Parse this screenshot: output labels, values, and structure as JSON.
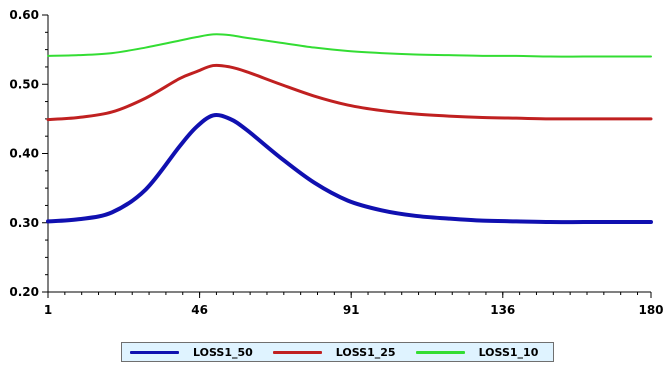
{
  "chart_data": {
    "type": "line",
    "title": "",
    "xlabel": "",
    "ylabel": "",
    "xlim": [
      1,
      180
    ],
    "ylim": [
      0.2,
      0.6
    ],
    "x_ticks": [
      "1",
      "46",
      "91",
      "136",
      "180"
    ],
    "y_ticks": [
      "0.20",
      "0.30",
      "0.40",
      "0.50",
      "0.60"
    ],
    "legend_position": "bottom",
    "grid": false,
    "series": [
      {
        "name": "LOSS1_50",
        "color": "#1010b0",
        "x": [
          1,
          10,
          20,
          30,
          40,
          45,
          50,
          55,
          60,
          70,
          80,
          90,
          100,
          110,
          120,
          130,
          140,
          150,
          160,
          170,
          180
        ],
        "y": [
          0.302,
          0.305,
          0.315,
          0.348,
          0.41,
          0.438,
          0.455,
          0.45,
          0.434,
          0.394,
          0.358,
          0.332,
          0.318,
          0.31,
          0.306,
          0.303,
          0.302,
          0.301,
          0.301,
          0.301,
          0.301
        ]
      },
      {
        "name": "LOSS1_25",
        "color": "#c02020",
        "x": [
          1,
          10,
          20,
          30,
          40,
          45,
          50,
          55,
          60,
          70,
          80,
          90,
          100,
          110,
          120,
          130,
          140,
          150,
          160,
          170,
          180
        ],
        "y": [
          0.449,
          0.452,
          0.46,
          0.48,
          0.508,
          0.518,
          0.527,
          0.525,
          0.518,
          0.5,
          0.483,
          0.47,
          0.462,
          0.457,
          0.454,
          0.452,
          0.451,
          0.45,
          0.45,
          0.45,
          0.45
        ]
      },
      {
        "name": "LOSS1_10",
        "color": "#33dd33",
        "x": [
          1,
          10,
          20,
          30,
          40,
          45,
          50,
          55,
          60,
          70,
          80,
          90,
          100,
          110,
          120,
          130,
          140,
          150,
          160,
          170,
          180
        ],
        "y": [
          0.541,
          0.542,
          0.545,
          0.553,
          0.563,
          0.568,
          0.572,
          0.571,
          0.567,
          0.56,
          0.553,
          0.548,
          0.545,
          0.543,
          0.542,
          0.541,
          0.541,
          0.54,
          0.54,
          0.54,
          0.54
        ]
      }
    ]
  }
}
